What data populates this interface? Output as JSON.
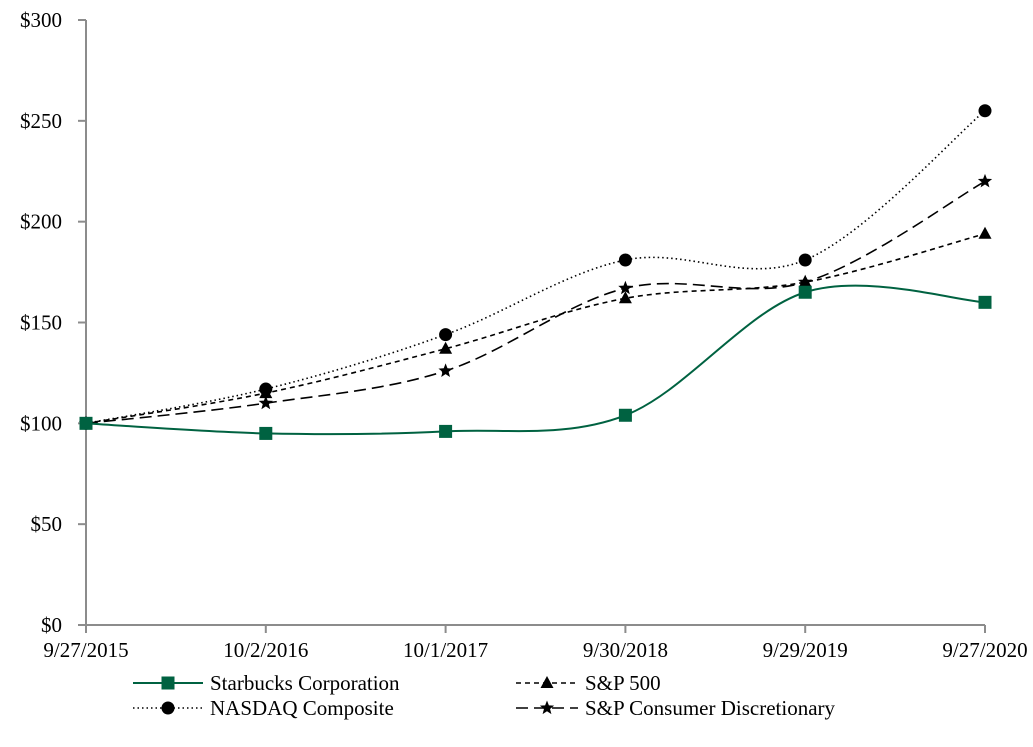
{
  "chart_data": {
    "type": "line",
    "title": "",
    "xlabel": "",
    "ylabel": "",
    "categories": [
      "9/27/2015",
      "10/2/2016",
      "10/1/2017",
      "9/30/2018",
      "9/29/2019",
      "9/27/2020"
    ],
    "ylim": [
      0,
      300
    ],
    "yticks": [
      0,
      50,
      100,
      150,
      200,
      250,
      300
    ],
    "ytick_labels": [
      "$0",
      "$50",
      "$100",
      "$150",
      "$200",
      "$250",
      "$300"
    ],
    "grid": false,
    "legend_position": "bottom",
    "series": [
      {
        "name": "Starbucks Corporation",
        "values": [
          100,
          95,
          96,
          104,
          165,
          160
        ],
        "color": "#006241",
        "line": "solid",
        "marker": "square"
      },
      {
        "name": "S&P 500",
        "values": [
          100,
          115,
          137,
          162,
          170,
          194
        ],
        "color": "#000000",
        "line": "dashed-short",
        "marker": "triangle"
      },
      {
        "name": "NASDAQ Composite",
        "values": [
          100,
          117,
          144,
          181,
          181,
          255
        ],
        "color": "#000000",
        "line": "dotted",
        "marker": "circle"
      },
      {
        "name": "S&P Consumer Discretionary",
        "values": [
          100,
          110,
          126,
          167,
          170,
          220
        ],
        "color": "#000000",
        "line": "dashed-long",
        "marker": "star"
      }
    ]
  }
}
